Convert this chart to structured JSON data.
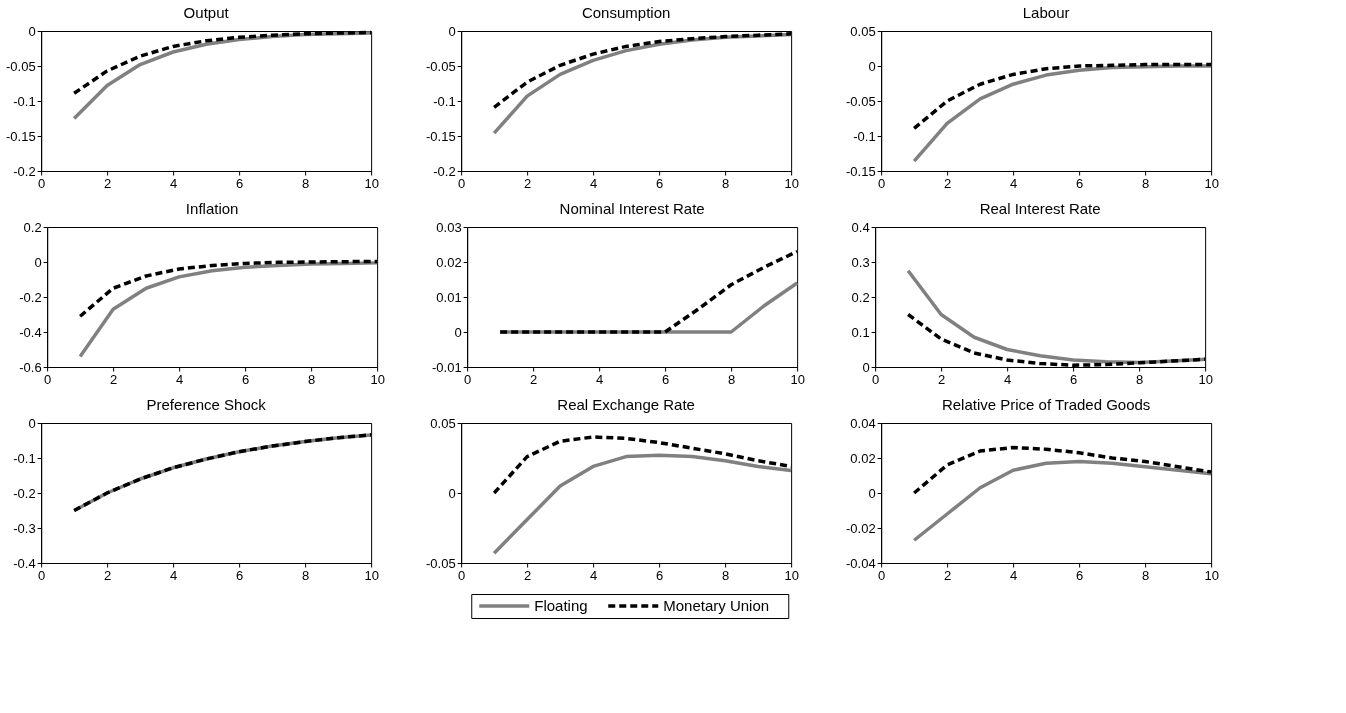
{
  "chart_data": [
    {
      "type": "line",
      "title": "Output",
      "x": [
        1,
        2,
        3,
        4,
        5,
        6,
        7,
        8,
        9,
        10
      ],
      "xlim": [
        0,
        10
      ],
      "xticks": [
        0,
        2,
        4,
        6,
        8,
        10
      ],
      "ylim": [
        -0.2,
        0
      ],
      "yticks": [
        -0.2,
        -0.15,
        -0.1,
        -0.05,
        0
      ],
      "grid": false,
      "legend": "bottom",
      "series": [
        {
          "name": "Floating",
          "color": "#808080",
          "line_style": "solid",
          "values": [
            -0.125,
            -0.078,
            -0.048,
            -0.03,
            -0.019,
            -0.012,
            -0.008,
            -0.005,
            -0.004,
            -0.003
          ]
        },
        {
          "name": "Monetary Union",
          "color": "#000000",
          "line_style": "dashed",
          "values": [
            -0.089,
            -0.057,
            -0.036,
            -0.022,
            -0.014,
            -0.009,
            -0.006,
            -0.004,
            -0.003,
            -0.002
          ]
        }
      ]
    },
    {
      "type": "line",
      "title": "Consumption",
      "x": [
        1,
        2,
        3,
        4,
        5,
        6,
        7,
        8,
        9,
        10
      ],
      "xlim": [
        0,
        10
      ],
      "xticks": [
        0,
        2,
        4,
        6,
        8,
        10
      ],
      "ylim": [
        -0.2,
        0
      ],
      "yticks": [
        -0.2,
        -0.15,
        -0.1,
        -0.05,
        0
      ],
      "grid": false,
      "series": [
        {
          "color": "#808080",
          "line_style": "solid",
          "values": [
            -0.146,
            -0.093,
            -0.062,
            -0.042,
            -0.028,
            -0.019,
            -0.013,
            -0.009,
            -0.007,
            -0.005
          ]
        },
        {
          "color": "#000000",
          "line_style": "dashed",
          "values": [
            -0.109,
            -0.073,
            -0.049,
            -0.033,
            -0.022,
            -0.015,
            -0.011,
            -0.008,
            -0.006,
            -0.004
          ]
        }
      ]
    },
    {
      "type": "line",
      "title": "Labour",
      "x": [
        1,
        2,
        3,
        4,
        5,
        6,
        7,
        8,
        9,
        10
      ],
      "xlim": [
        0,
        10
      ],
      "xticks": [
        0,
        2,
        4,
        6,
        8,
        10
      ],
      "ylim": [
        -0.15,
        0.05
      ],
      "yticks": [
        -0.15,
        -0.1,
        -0.05,
        0,
        0.05
      ],
      "grid": false,
      "series": [
        {
          "color": "#808080",
          "line_style": "solid",
          "values": [
            -0.136,
            -0.082,
            -0.047,
            -0.026,
            -0.013,
            -0.006,
            -0.002,
            -0.001,
            0,
            0
          ]
        },
        {
          "color": "#000000",
          "line_style": "dashed",
          "values": [
            -0.089,
            -0.05,
            -0.026,
            -0.012,
            -0.004,
            0,
            0.001,
            0.002,
            0.002,
            0.002
          ]
        }
      ]
    },
    {
      "type": "line",
      "title": "Inflation",
      "x": [
        1,
        2,
        3,
        4,
        5,
        6,
        7,
        8,
        9,
        10
      ],
      "xlim": [
        0,
        10
      ],
      "xticks": [
        0,
        2,
        4,
        6,
        8,
        10
      ],
      "ylim": [
        -0.6,
        0.2
      ],
      "yticks": [
        -0.6,
        -0.4,
        -0.2,
        0,
        0.2
      ],
      "grid": false,
      "series": [
        {
          "color": "#808080",
          "line_style": "solid",
          "values": [
            -0.54,
            -0.27,
            -0.15,
            -0.085,
            -0.05,
            -0.03,
            -0.02,
            -0.012,
            -0.008,
            -0.005
          ]
        },
        {
          "color": "#000000",
          "line_style": "dashed",
          "values": [
            -0.31,
            -0.15,
            -0.08,
            -0.04,
            -0.02,
            -0.008,
            -0.002,
            0,
            0.002,
            0.003
          ]
        }
      ]
    },
    {
      "type": "line",
      "title": "Nominal Interest Rate",
      "x": [
        1,
        2,
        3,
        4,
        5,
        6,
        7,
        8,
        9,
        10
      ],
      "xlim": [
        0,
        10
      ],
      "xticks": [
        0,
        2,
        4,
        6,
        8,
        10
      ],
      "ylim": [
        -0.01,
        0.03
      ],
      "yticks": [
        -0.01,
        0,
        0.01,
        0.02,
        0.03
      ],
      "grid": false,
      "series": [
        {
          "color": "#808080",
          "line_style": "solid",
          "values": [
            0,
            0,
            0,
            0,
            0,
            0,
            0,
            0,
            0.0075,
            0.014
          ]
        },
        {
          "color": "#000000",
          "line_style": "dashed",
          "values": [
            0,
            0,
            0,
            0,
            0,
            0,
            0.0065,
            0.0135,
            0.0185,
            0.023
          ]
        }
      ]
    },
    {
      "type": "line",
      "title": "Real Interest Rate",
      "x": [
        1,
        2,
        3,
        4,
        5,
        6,
        7,
        8,
        9,
        10
      ],
      "xlim": [
        0,
        10
      ],
      "xticks": [
        0,
        2,
        4,
        6,
        8,
        10
      ],
      "ylim": [
        0,
        0.4
      ],
      "yticks": [
        0,
        0.1,
        0.2,
        0.3,
        0.4
      ],
      "grid": false,
      "series": [
        {
          "color": "#808080",
          "line_style": "solid",
          "values": [
            0.275,
            0.15,
            0.085,
            0.05,
            0.032,
            0.02,
            0.015,
            0.013,
            0.017,
            0.022
          ]
        },
        {
          "color": "#000000",
          "line_style": "dashed",
          "values": [
            0.15,
            0.08,
            0.04,
            0.02,
            0.01,
            0.005,
            0.007,
            0.012,
            0.017,
            0.022
          ]
        }
      ]
    },
    {
      "type": "line",
      "title": "Preference Shock",
      "x": [
        1,
        2,
        3,
        4,
        5,
        6,
        7,
        8,
        9,
        10
      ],
      "xlim": [
        0,
        10
      ],
      "xticks": [
        0,
        2,
        4,
        6,
        8,
        10
      ],
      "ylim": [
        -0.4,
        0
      ],
      "yticks": [
        -0.4,
        -0.3,
        -0.2,
        -0.1,
        0
      ],
      "grid": false,
      "series": [
        {
          "color": "#808080",
          "line_style": "solid",
          "values": [
            -0.25,
            -0.2,
            -0.16,
            -0.128,
            -0.103,
            -0.082,
            -0.066,
            -0.053,
            -0.042,
            -0.034
          ]
        },
        {
          "color": "#000000",
          "line_style": "dashed",
          "values": [
            -0.25,
            -0.2,
            -0.16,
            -0.128,
            -0.103,
            -0.082,
            -0.066,
            -0.053,
            -0.042,
            -0.034
          ]
        }
      ]
    },
    {
      "type": "line",
      "title": "Real Exchange Rate",
      "x": [
        1,
        2,
        3,
        4,
        5,
        6,
        7,
        8,
        9,
        10
      ],
      "xlim": [
        0,
        10
      ],
      "xticks": [
        0,
        2,
        4,
        6,
        8,
        10
      ],
      "ylim": [
        -0.05,
        0.05
      ],
      "yticks": [
        -0.05,
        0,
        0.05
      ],
      "grid": false,
      "series": [
        {
          "color": "#808080",
          "line_style": "solid",
          "values": [
            -0.043,
            -0.019,
            0.005,
            0.019,
            0.026,
            0.027,
            0.026,
            0.023,
            0.019,
            0.016
          ]
        },
        {
          "color": "#000000",
          "line_style": "dashed",
          "values": [
            0,
            0.026,
            0.037,
            0.04,
            0.039,
            0.036,
            0.032,
            0.028,
            0.023,
            0.019
          ]
        }
      ]
    },
    {
      "type": "line",
      "title": "Relative Price of Traded Goods",
      "x": [
        1,
        2,
        3,
        4,
        5,
        6,
        7,
        8,
        9,
        10
      ],
      "xlim": [
        0,
        10
      ],
      "xticks": [
        0,
        2,
        4,
        6,
        8,
        10
      ],
      "ylim": [
        -0.04,
        0.04
      ],
      "yticks": [
        -0.04,
        -0.02,
        0,
        0.02,
        0.04
      ],
      "grid": false,
      "series": [
        {
          "color": "#808080",
          "line_style": "solid",
          "values": [
            -0.027,
            -0.012,
            0.003,
            0.013,
            0.017,
            0.018,
            0.017,
            0.015,
            0.013,
            0.011
          ]
        },
        {
          "color": "#000000",
          "line_style": "dashed",
          "values": [
            0,
            0.016,
            0.024,
            0.026,
            0.025,
            0.023,
            0.02,
            0.018,
            0.015,
            0.012
          ]
        }
      ]
    }
  ]
}
